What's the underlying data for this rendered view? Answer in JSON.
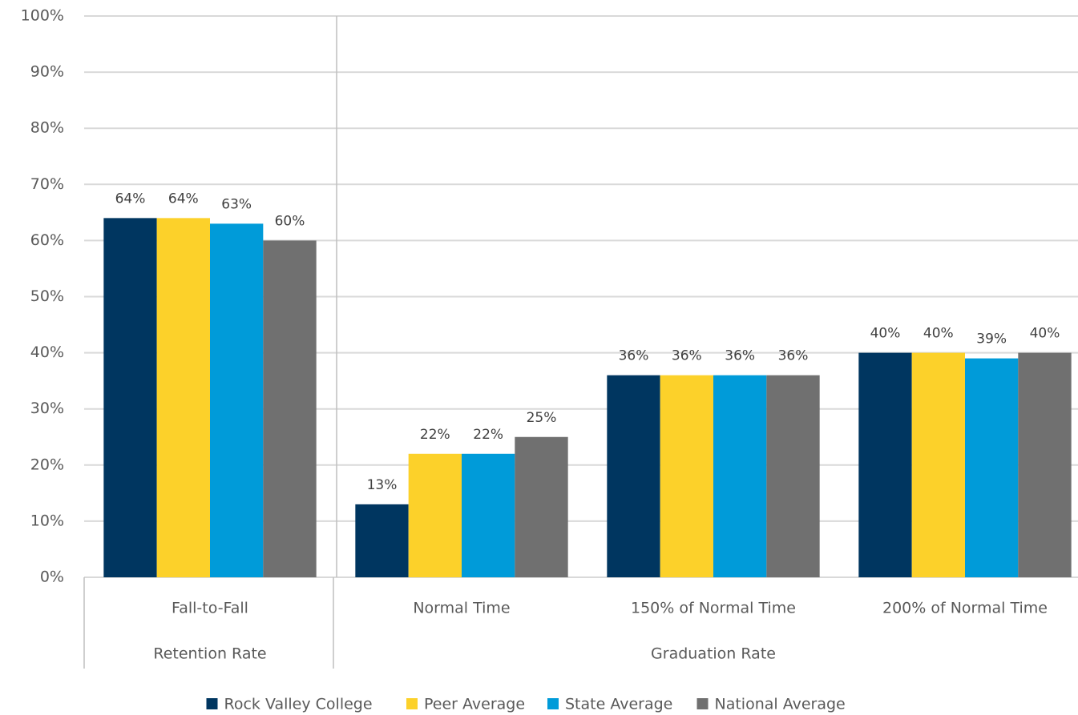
{
  "chart_data": {
    "type": "bar",
    "categories": [
      "Fall-to-Fall",
      "Normal Time",
      "150% of Normal Time",
      "200% of Normal Time"
    ],
    "category_groups": [
      {
        "name": "Retention Rate",
        "size": 1
      },
      {
        "name": "Graduation Rate",
        "size": 3
      }
    ],
    "series": [
      {
        "name": "Rock Valley College",
        "color": "#003660",
        "values": [
          64,
          13,
          36,
          40
        ],
        "value_labels": [
          "64%",
          "13%",
          "36%",
          "40%"
        ]
      },
      {
        "name": "Peer Average",
        "color": "#fcd12a",
        "values": [
          64,
          22,
          36,
          40
        ],
        "value_labels": [
          "64%",
          "22%",
          "36%",
          "40%"
        ]
      },
      {
        "name": "State Average",
        "color": "#009bd9",
        "values": [
          63,
          22,
          36,
          39
        ],
        "value_labels": [
          "63%",
          "22%",
          "36%",
          "39%"
        ]
      },
      {
        "name": "National Average",
        "color": "#707070",
        "values": [
          60,
          25,
          36,
          40
        ],
        "value_labels": [
          "60%",
          "25%",
          "36%",
          "40%"
        ]
      }
    ],
    "ylim": [
      0,
      100
    ],
    "yticks": [
      {
        "value": 0,
        "label": "0%"
      },
      {
        "value": 10,
        "label": "10%"
      },
      {
        "value": 20,
        "label": "20%"
      },
      {
        "value": 30,
        "label": "30%"
      },
      {
        "value": 40,
        "label": "40%"
      },
      {
        "value": 50,
        "label": "50%"
      },
      {
        "value": 60,
        "label": "60%"
      },
      {
        "value": 70,
        "label": "70%"
      },
      {
        "value": 80,
        "label": "80%"
      },
      {
        "value": 90,
        "label": "90%"
      },
      {
        "value": 100,
        "label": "100%"
      }
    ],
    "grid": true,
    "legend": "bottom"
  }
}
